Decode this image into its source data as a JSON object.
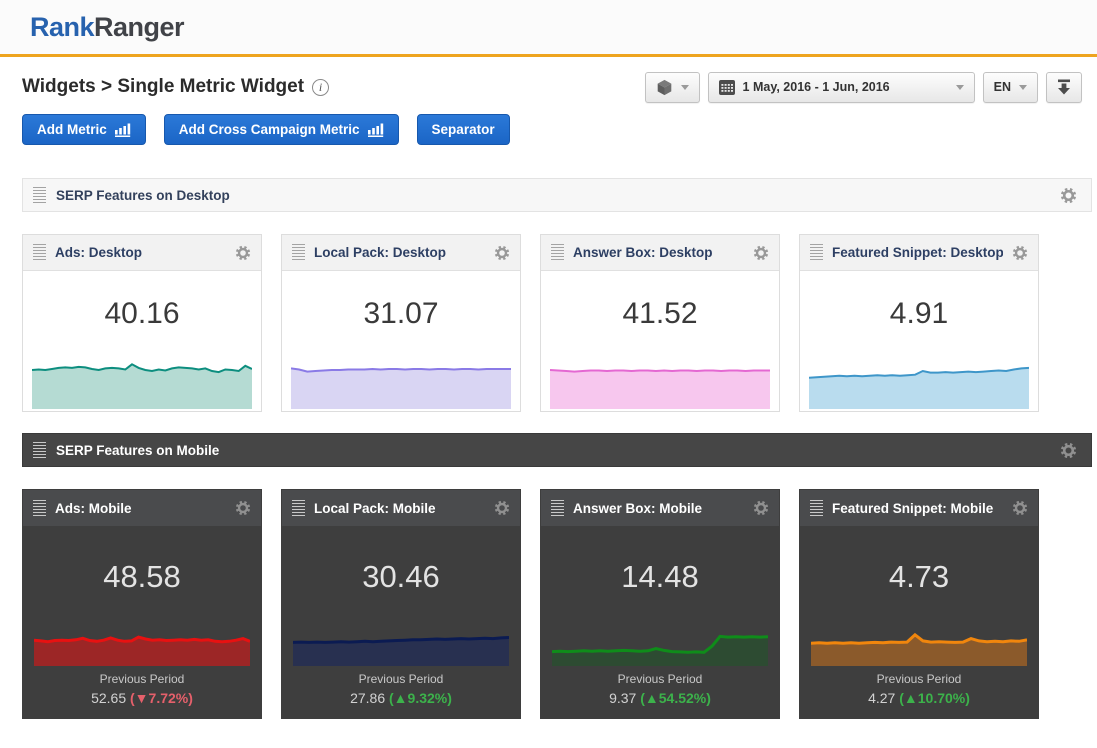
{
  "brand": {
    "name_part1": "Rank",
    "name_part2": "Ranger"
  },
  "page": {
    "breadcrumb": "Widgets > Single Metric Widget",
    "info_glyph": "i"
  },
  "toolbar": {
    "date_range": "1 May, 2016 - 1 Jun, 2016",
    "language": "EN"
  },
  "actions": {
    "add_metric": "Add Metric",
    "add_cross_campaign": "Add Cross Campaign Metric",
    "separator": "Separator"
  },
  "colors": {
    "accent_yellow": "#eea41f",
    "button_blue": "#1e70d2",
    "negative_red": "#e5606b",
    "positive_green": "#3cb24b"
  },
  "sections": [
    {
      "title": "SERP Features on Desktop",
      "cards": [
        {
          "title": "Ads: Desktop",
          "value": "40.16",
          "line": "#0d8e7f",
          "fill": "#b5dbd3",
          "stroke_w": 2,
          "points": [
            0.25,
            0.24,
            0.25,
            0.23,
            0.21,
            0.2,
            0.21,
            0.19,
            0.2,
            0.23,
            0.25,
            0.22,
            0.21,
            0.22,
            0.24,
            0.14,
            0.21,
            0.25,
            0.27,
            0.24,
            0.26,
            0.22,
            0.2,
            0.21,
            0.22,
            0.24,
            0.22,
            0.27,
            0.29,
            0.24,
            0.25,
            0.27,
            0.17,
            0.23
          ]
        },
        {
          "title": "Local Pack: Desktop",
          "value": "31.07",
          "line": "#8a7ae6",
          "fill": "#d9d5f3",
          "stroke_w": 2,
          "points": [
            0.22,
            0.24,
            0.28,
            0.27,
            0.26,
            0.25,
            0.25,
            0.24,
            0.24,
            0.24,
            0.23,
            0.24,
            0.23,
            0.23,
            0.24,
            0.23,
            0.23,
            0.24,
            0.23,
            0.23,
            0.24,
            0.23,
            0.23,
            0.24,
            0.23,
            0.23,
            0.23,
            0.23
          ]
        },
        {
          "title": "Answer Box: Desktop",
          "value": "41.52",
          "line": "#e468d2",
          "fill": "#f7c7ee",
          "stroke_w": 2,
          "points": [
            0.25,
            0.26,
            0.27,
            0.28,
            0.27,
            0.26,
            0.26,
            0.27,
            0.26,
            0.26,
            0.27,
            0.26,
            0.26,
            0.27,
            0.26,
            0.27,
            0.26,
            0.26,
            0.27,
            0.26,
            0.26,
            0.27,
            0.26,
            0.26,
            0.27,
            0.26,
            0.26,
            0.26
          ]
        },
        {
          "title": "Featured Snippet: Desktop",
          "value": "4.91",
          "line": "#3e96c9",
          "fill": "#b9dcee",
          "stroke_w": 2,
          "points": [
            0.4,
            0.39,
            0.38,
            0.37,
            0.36,
            0.37,
            0.36,
            0.37,
            0.36,
            0.35,
            0.36,
            0.35,
            0.36,
            0.35,
            0.34,
            0.27,
            0.3,
            0.3,
            0.29,
            0.3,
            0.29,
            0.28,
            0.29,
            0.28,
            0.27,
            0.26,
            0.27,
            0.24,
            0.22,
            0.21
          ]
        }
      ]
    },
    {
      "title": "SERP Features on Mobile",
      "cards": [
        {
          "title": "Ads: Mobile",
          "value": "48.58",
          "line": "#e81111",
          "fill": "#9c2626",
          "stroke_w": 3,
          "points": [
            0.32,
            0.34,
            0.36,
            0.33,
            0.32,
            0.33,
            0.31,
            0.27,
            0.33,
            0.35,
            0.32,
            0.26,
            0.32,
            0.35,
            0.34,
            0.24,
            0.29,
            0.32,
            0.31,
            0.33,
            0.32,
            0.31,
            0.32,
            0.3,
            0.32,
            0.31,
            0.35,
            0.36,
            0.35,
            0.32,
            0.28,
            0.35
          ],
          "previous": {
            "label": "Previous Period",
            "value": "52.65",
            "change_display": "(▼7.72%)",
            "direction": "down"
          }
        },
        {
          "title": "Local Pack: Mobile",
          "value": "30.46",
          "line": "#0b1b52",
          "fill": "#283050",
          "stroke_w": 3,
          "points": [
            0.38,
            0.37,
            0.38,
            0.37,
            0.38,
            0.37,
            0.36,
            0.37,
            0.36,
            0.35,
            0.36,
            0.35,
            0.34,
            0.33,
            0.32,
            0.31,
            0.31,
            0.3,
            0.29,
            0.3,
            0.29,
            0.28,
            0.29,
            0.28,
            0.27,
            0.28,
            0.26,
            0.25
          ],
          "previous": {
            "label": "Previous Period",
            "value": "27.86",
            "change_display": "(▲9.32%)",
            "direction": "up"
          }
        },
        {
          "title": "Answer Box: Mobile",
          "value": "14.48",
          "line": "#0f8c1a",
          "fill": "#2d4b32",
          "stroke_w": 3,
          "points": [
            0.62,
            0.61,
            0.62,
            0.61,
            0.6,
            0.61,
            0.6,
            0.61,
            0.6,
            0.59,
            0.6,
            0.61,
            0.6,
            0.54,
            0.59,
            0.62,
            0.63,
            0.64,
            0.63,
            0.64,
            0.48,
            0.22,
            0.24,
            0.23,
            0.24,
            0.23,
            0.24,
            0.23
          ],
          "previous": {
            "label": "Previous Period",
            "value": "9.37",
            "change_display": "(▲54.52%)",
            "direction": "up"
          }
        },
        {
          "title": "Featured Snippet: Mobile",
          "value": "4.73",
          "line": "#f1860d",
          "fill": "#8b5a2b",
          "stroke_w": 3,
          "points": [
            0.4,
            0.39,
            0.4,
            0.39,
            0.4,
            0.39,
            0.4,
            0.39,
            0.38,
            0.39,
            0.37,
            0.38,
            0.37,
            0.18,
            0.34,
            0.37,
            0.36,
            0.37,
            0.38,
            0.37,
            0.28,
            0.34,
            0.36,
            0.35,
            0.36,
            0.34,
            0.35,
            0.31
          ],
          "previous": {
            "label": "Previous Period",
            "value": "4.27",
            "change_display": "(▲10.70%)",
            "direction": "up"
          }
        }
      ]
    }
  ]
}
